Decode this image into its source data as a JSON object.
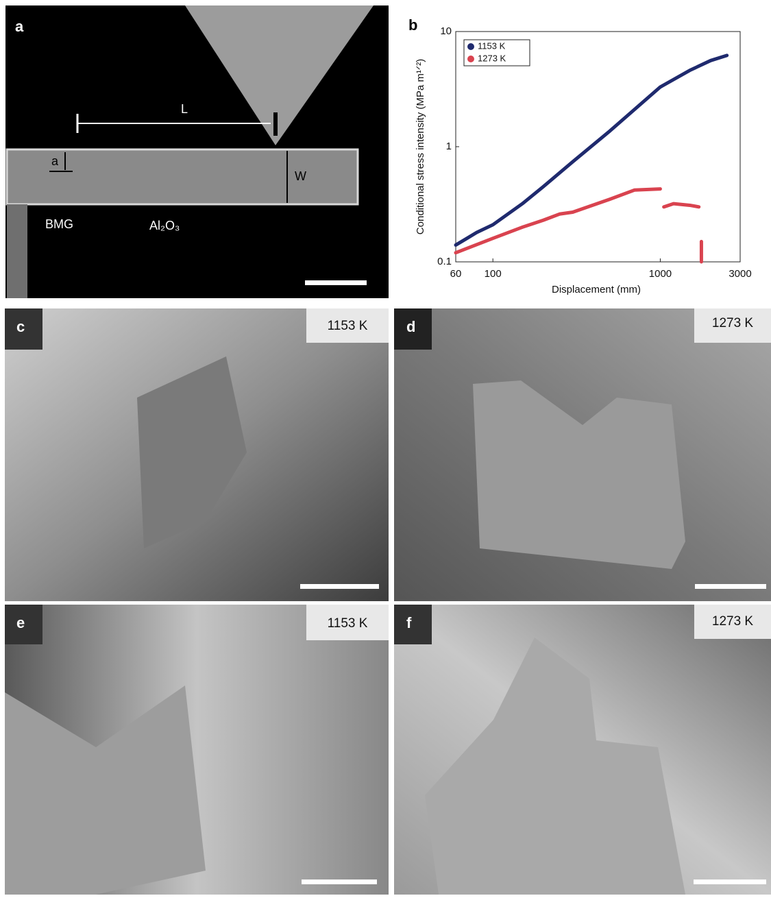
{
  "panels": [
    {
      "label": "a",
      "annotations": [
        "L",
        "a",
        "W",
        "BMG",
        "Al₂O₃"
      ]
    },
    {
      "label": "b"
    },
    {
      "label": "c",
      "temperature": "1153 K"
    },
    {
      "label": "d",
      "temperature": "1273 K"
    },
    {
      "label": "e",
      "temperature": "1153 K"
    },
    {
      "label": "f",
      "temperature": "1273 K"
    }
  ],
  "chart_data": {
    "type": "line",
    "x_label": "Displacement (mm)",
    "y_label": "Conditional stress intensity (MPa m¹ᐟ²)",
    "x_scale": "log",
    "y_scale": "log",
    "xlim": [
      60,
      3000
    ],
    "xticks": [
      60,
      100,
      1000,
      3000
    ],
    "ylim": [
      0.1,
      10
    ],
    "yticks": [
      0.1,
      1,
      10
    ],
    "legend": "upper left",
    "series": [
      {
        "name": "1153 K",
        "color": "#1f2a6e",
        "x": [
          60,
          70,
          80,
          100,
          150,
          200,
          300,
          500,
          700,
          1000,
          1500,
          2000,
          2500
        ],
        "values": [
          0.14,
          0.16,
          0.18,
          0.21,
          0.32,
          0.45,
          0.74,
          1.37,
          2.1,
          3.3,
          4.6,
          5.6,
          6.2
        ]
      },
      {
        "name": "1273 K",
        "color": "#d9434f",
        "x": [
          60,
          100,
          150,
          200,
          250,
          300,
          500,
          700,
          1000,
          1050,
          1050,
          1200,
          1500,
          1700,
          1750,
          1760,
          1760
        ],
        "values": [
          0.12,
          0.16,
          0.2,
          0.23,
          0.26,
          0.27,
          0.35,
          0.42,
          0.43,
          null,
          0.3,
          0.32,
          0.31,
          0.3,
          null,
          0.15,
          0.1
        ]
      }
    ]
  }
}
